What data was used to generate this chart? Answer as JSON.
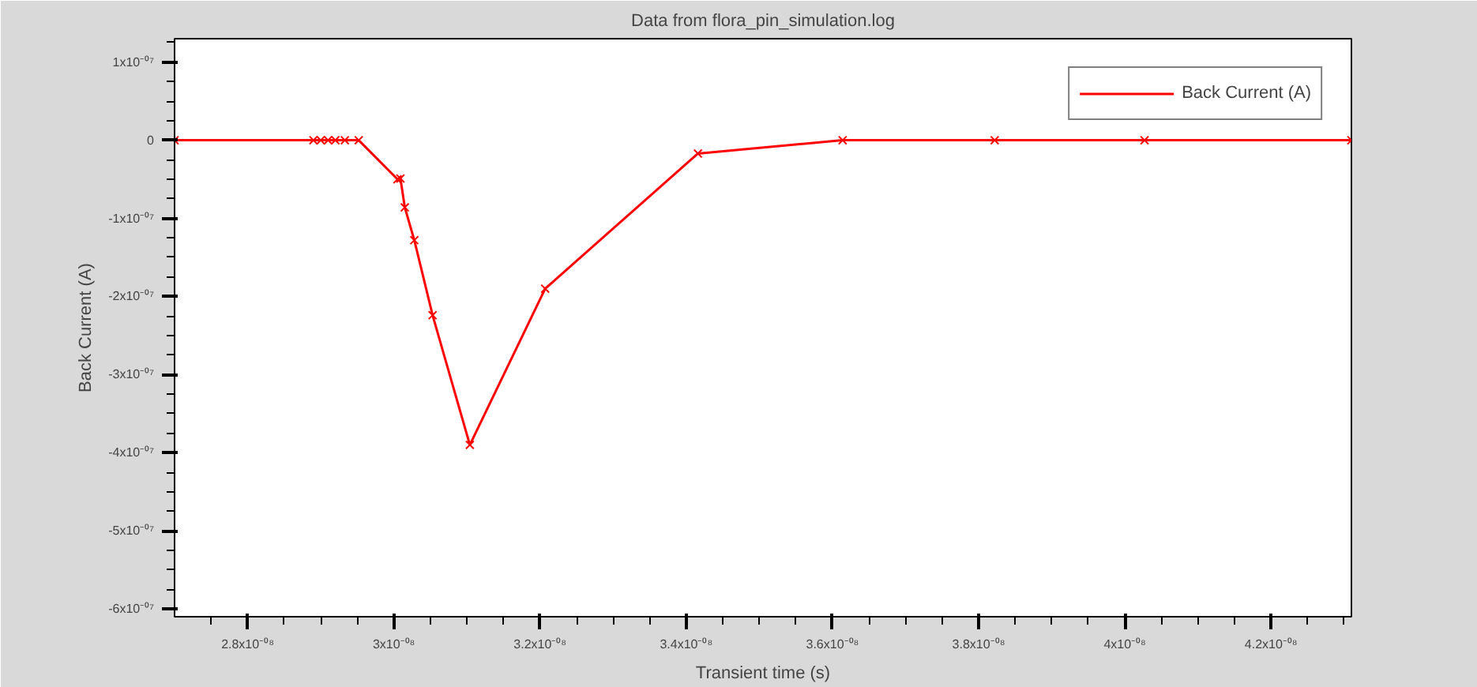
{
  "chart_data": {
    "type": "line",
    "title": "Data from flora_pin_simulation.log",
    "xlabel": "Transient time (s)",
    "ylabel": "Back Current (A)",
    "series": [
      {
        "name": "Back Current (A)",
        "color": "#ff0000",
        "x": [
          2.7e-08,
          2.89e-08,
          2.9e-08,
          2.91e-08,
          2.92e-08,
          2.933e-08,
          2.952e-08,
          3.005e-08,
          3.009e-08,
          3.015e-08,
          3.028e-08,
          3.053e-08,
          3.104e-08,
          3.207e-08,
          3.416e-08,
          3.614e-08,
          3.822e-08,
          4.027e-08,
          4.31e-08
        ],
        "values": [
          0,
          0,
          0,
          0,
          0,
          0,
          0,
          -5e-08,
          -4.9e-08,
          -8.6e-08,
          -1.28e-07,
          -2.24e-07,
          -3.9e-07,
          -1.9e-07,
          -1.7e-08,
          0,
          0,
          0,
          0
        ]
      }
    ],
    "xlim": [
      2.7e-08,
      4.31e-08
    ],
    "ylim": [
      -6.1e-07,
      1.3e-07
    ],
    "xticks": [
      {
        "value": 2.8e-08,
        "label": "2.8x10⁻⁰⁸"
      },
      {
        "value": 3e-08,
        "label": "3x10⁻⁰⁸"
      },
      {
        "value": 3.2e-08,
        "label": "3.2x10⁻⁰⁸"
      },
      {
        "value": 3.4e-08,
        "label": "3.4x10⁻⁰⁸"
      },
      {
        "value": 3.6e-08,
        "label": "3.6x10⁻⁰⁸"
      },
      {
        "value": 3.8e-08,
        "label": "3.8x10⁻⁰⁸"
      },
      {
        "value": 4e-08,
        "label": "4x10⁻⁰⁸"
      },
      {
        "value": 4.2e-08,
        "label": "4.2x10⁻⁰⁸"
      }
    ],
    "yticks": [
      {
        "value": 1e-07,
        "label": "1x10⁻⁰⁷"
      },
      0,
      {
        "value": -1e-07,
        "label": "-1x10⁻⁰⁷"
      },
      {
        "value": -2e-07,
        "label": "-2x10⁻⁰⁷"
      },
      {
        "value": -3e-07,
        "label": "-3x10⁻⁰⁷"
      },
      {
        "value": -4e-07,
        "label": "-4x10⁻⁰⁷"
      },
      {
        "value": -5e-07,
        "label": "-5x10⁻⁰⁷"
      },
      {
        "value": -6e-07,
        "label": "-6x10⁻⁰⁷"
      }
    ],
    "grid": false,
    "legend": "top right",
    "marker": "cross",
    "line_style": "solid"
  }
}
